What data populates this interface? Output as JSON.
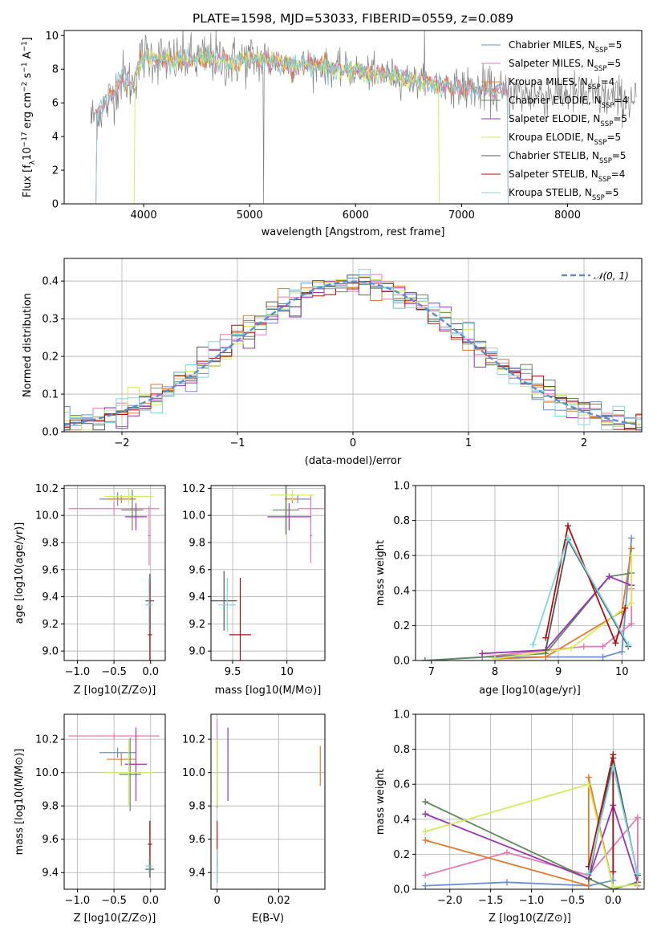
{
  "figure_title": "PLATE=1598, MJD=53033, FIBERID=0559, z=0.089",
  "colors": {
    "Chabrier MILES": "#6a8fd8",
    "Salpeter MILES": "#e27cb4",
    "Kroupa MILES": "#e07b2c",
    "Chabrier ELODIE": "#5f8a5b",
    "Salpeter ELODIE": "#9933b3",
    "Kroupa ELODIE": "#d4ea5c",
    "Chabrier STELIB": "#555555",
    "Salpeter STELIB": "#aa1111",
    "Kroupa STELIB": "#7dd6e0",
    "normal": "#5b8cd6"
  },
  "chart_data": [
    {
      "id": "spectrum",
      "type": "line",
      "title": "PLATE=1598, MJD=53033, FIBERID=0559, z=0.089",
      "xlabel": "wavelength [Angstrom, rest frame]",
      "ylabel": "Flux [f_λ 10^-17 erg cm^-2 s^-1 A^-1]",
      "xlim": [
        3250,
        8700
      ],
      "ylim": [
        0,
        10.3
      ],
      "xticks": [
        4000,
        5000,
        6000,
        7000,
        8000
      ],
      "yticks": [
        0,
        2,
        4,
        6,
        8,
        10
      ],
      "grid": false,
      "legend_position": "upper right",
      "legend": [
        {
          "base": "Chabrier MILES, N",
          "n": "5"
        },
        {
          "base": "Salpeter MILES, N",
          "n": "5"
        },
        {
          "base": "Kroupa MILES, N",
          "n": "4"
        },
        {
          "base": "Chabrier ELODIE, N",
          "n": "4"
        },
        {
          "base": "Salpeter ELODIE, N",
          "n": "5"
        },
        {
          "base": "Kroupa ELODIE, N",
          "n": "5"
        },
        {
          "base": "Chabrier STELIB, N",
          "n": "5"
        },
        {
          "base": "Salpeter STELIB, N",
          "n": "4"
        },
        {
          "base": "Kroupa STELIB, N",
          "n": "5"
        }
      ],
      "series_models": [
        {
          "name": "Kroupa MILES",
          "range": [
            3540,
            7450
          ]
        },
        {
          "name": "Salpeter MILES",
          "range": [
            3540,
            7450
          ]
        },
        {
          "name": "Kroupa ELODIE",
          "range": [
            3900,
            6800
          ]
        },
        {
          "name": "Kroupa STELIB",
          "range": [
            3540,
            7450
          ]
        }
      ],
      "data_curve": {
        "wavelength": [
          3500,
          3550,
          3600,
          3650,
          3700,
          3750,
          3800,
          3850,
          3900,
          3950,
          4000,
          4100,
          4200,
          4300,
          4400,
          4500,
          4600,
          4700,
          4800,
          4900,
          5000,
          5200,
          5400,
          5600,
          5800,
          6000,
          6200,
          6400,
          6600,
          6800,
          7000,
          7200,
          7400,
          7600,
          7800,
          8000,
          8200,
          8400,
          8600
        ],
        "flux": [
          5.0,
          5.3,
          5.6,
          5.9,
          6.4,
          7.0,
          7.6,
          7.3,
          7.0,
          8.2,
          8.8,
          8.7,
          8.6,
          8.5,
          8.6,
          8.5,
          8.7,
          8.6,
          8.4,
          8.5,
          8.6,
          8.5,
          8.3,
          8.3,
          8.0,
          7.9,
          7.7,
          7.6,
          7.2,
          7.1,
          6.9,
          6.8,
          6.6,
          6.5,
          6.5,
          6.6,
          6.4,
          6.3,
          6.2
        ]
      }
    },
    {
      "id": "residuals",
      "type": "histogram",
      "xlabel": "(data-model)/error",
      "ylabel": "Normed distribution",
      "xlim": [
        -2.5,
        2.5
      ],
      "ylim": [
        0,
        0.46
      ],
      "xticks": [
        -2,
        -1,
        0,
        1,
        2
      ],
      "yticks": [
        0.0,
        0.1,
        0.2,
        0.3,
        0.4
      ],
      "grid": true,
      "legend_position": "upper right",
      "legend": [
        "N(0,1)"
      ],
      "bin_width": 0.1
    },
    {
      "id": "age_vs_Z",
      "type": "scatter",
      "xlabel": "Z [log10(Z/Z⊙)]",
      "ylabel": "age [log10(age/yr)]",
      "xlim": [
        -1.18,
        0.2
      ],
      "ylim": [
        8.93,
        10.22
      ],
      "xticks": [
        -1.0,
        -0.5,
        0.0
      ],
      "xticklabels": [
        "−1.0",
        "−0.5",
        "0.0"
      ],
      "yticks": [
        9.0,
        9.2,
        9.4,
        9.6,
        9.8,
        10.0,
        10.2
      ],
      "grid": true,
      "points": [
        {
          "model": "Chabrier MILES",
          "x": -0.45,
          "xerr": 0.25,
          "y": 10.12,
          "yerr": 0.05
        },
        {
          "model": "Salpeter MILES",
          "x": -0.5,
          "xerr": 0.62,
          "y": 10.05,
          "yerr": 0.05
        },
        {
          "model": "Salpeter MILES",
          "x": -0.02,
          "xerr": 0.02,
          "y": 9.85,
          "yerr": 0.22
        },
        {
          "model": "Kroupa MILES",
          "x": -0.4,
          "xerr": 0.2,
          "y": 10.12,
          "yerr": 0.03
        },
        {
          "model": "Chabrier ELODIE",
          "x": -0.25,
          "xerr": 0.15,
          "y": 10.04,
          "yerr": 0.15
        },
        {
          "model": "Salpeter ELODIE",
          "x": -0.2,
          "xerr": 0.15,
          "y": 9.99,
          "yerr": 0.1
        },
        {
          "model": "Kroupa ELODIE",
          "x": -0.3,
          "xerr": 0.33,
          "y": 10.14,
          "yerr": 0.06
        },
        {
          "model": "Chabrier STELIB",
          "x": -0.01,
          "xerr": 0.06,
          "y": 9.37,
          "yerr": 0.2
        },
        {
          "model": "Salpeter STELIB",
          "x": -0.01,
          "xerr": 0.03,
          "y": 9.12,
          "yerr": 0.4
        },
        {
          "model": "Kroupa STELIB",
          "x": -0.02,
          "xerr": 0.05,
          "y": 9.34,
          "yerr": 0.2
        }
      ]
    },
    {
      "id": "age_vs_mass",
      "type": "scatter",
      "xlabel": "mass [log10(M/M⊙)]",
      "xlim": [
        9.3,
        10.35
      ],
      "ylim": [
        8.93,
        10.22
      ],
      "xticks": [
        9.5,
        10.0
      ],
      "yticks": [
        9.0,
        9.2,
        9.4,
        9.6,
        9.8,
        10.0,
        10.2
      ],
      "grid": true,
      "points": [
        {
          "model": "Chabrier MILES",
          "x": 10.1,
          "xerr": 0.12,
          "y": 10.12,
          "yerr": 0.03
        },
        {
          "model": "Salpeter MILES",
          "x": 10.22,
          "xerr": 0.12,
          "y": 10.05,
          "yerr": 0.1
        },
        {
          "model": "Salpeter MILES",
          "x": 10.22,
          "xerr": 0.01,
          "y": 9.85,
          "yerr": 0.2
        },
        {
          "model": "Kroupa MILES",
          "x": 10.05,
          "xerr": 0.06,
          "y": 10.12,
          "yerr": 0.03
        },
        {
          "model": "Chabrier ELODIE",
          "x": 9.99,
          "xerr": 0.12,
          "y": 10.04,
          "yerr": 0.18
        },
        {
          "model": "Salpeter ELODIE",
          "x": 10.02,
          "xerr": 0.2,
          "y": 9.99,
          "yerr": 0.1
        },
        {
          "model": "Kroupa ELODIE",
          "x": 10.05,
          "xerr": 0.2,
          "y": 10.15,
          "yerr": 0.04
        },
        {
          "model": "Chabrier STELIB",
          "x": 9.42,
          "xerr": 0.12,
          "y": 9.37,
          "yerr": 0.22
        },
        {
          "model": "Salpeter STELIB",
          "x": 9.57,
          "xerr": 0.1,
          "y": 9.12,
          "yerr": 0.42
        },
        {
          "model": "Kroupa STELIB",
          "x": 9.45,
          "xerr": 0.08,
          "y": 9.34,
          "yerr": 0.2
        }
      ]
    },
    {
      "id": "massweight_vs_age",
      "type": "line",
      "xlabel": "age [log10(age/yr)]",
      "ylabel": "mass weight",
      "xlim": [
        6.75,
        10.35
      ],
      "ylim": [
        0,
        1
      ],
      "xticks": [
        7,
        8,
        9,
        10
      ],
      "yticks": [
        0.0,
        0.2,
        0.4,
        0.6,
        0.8,
        1.0
      ],
      "grid": true,
      "series": [
        {
          "name": "Chabrier MILES",
          "x": [
            6.9,
            7.8,
            9.7,
            10.0,
            10.15
          ],
          "y": [
            0.0,
            0.02,
            0.02,
            0.05,
            0.7
          ]
        },
        {
          "name": "Salpeter MILES",
          "x": [
            7.8,
            9.4,
            9.7,
            10.15,
            10.15
          ],
          "y": [
            0.02,
            0.08,
            0.08,
            0.21,
            0.41
          ]
        },
        {
          "name": "Kroupa MILES",
          "x": [
            8.0,
            8.8,
            10.0,
            10.15
          ],
          "y": [
            0.01,
            0.02,
            0.28,
            0.64
          ]
        },
        {
          "name": "Chabrier ELODIE",
          "x": [
            6.9,
            8.8,
            9.8,
            10.15
          ],
          "y": [
            0.0,
            0.04,
            0.48,
            0.5
          ]
        },
        {
          "name": "Salpeter ELODIE",
          "x": [
            7.8,
            8.8,
            9.8,
            10.15
          ],
          "y": [
            0.04,
            0.06,
            0.48,
            0.43
          ]
        },
        {
          "name": "Kroupa ELODIE",
          "x": [
            8.0,
            9.2,
            10.15,
            10.15
          ],
          "y": [
            0.01,
            0.07,
            0.33,
            0.6
          ]
        },
        {
          "name": "Chabrier STELIB",
          "x": [
            8.8,
            9.15,
            10.1
          ],
          "y": [
            0.06,
            0.69,
            0.08
          ]
        },
        {
          "name": "Salpeter STELIB",
          "x": [
            8.8,
            9.15,
            9.9,
            10.05
          ],
          "y": [
            0.13,
            0.77,
            0.1,
            0.3
          ]
        },
        {
          "name": "Kroupa STELIB",
          "x": [
            8.6,
            9.15,
            10.1
          ],
          "y": [
            0.09,
            0.7,
            0.09
          ]
        }
      ]
    },
    {
      "id": "mass_vs_Z",
      "type": "scatter",
      "xlabel": "Z [log10(Z/Z⊙)]",
      "ylabel": "mass [log10(M/M⊙)]",
      "xlim": [
        -1.18,
        0.2
      ],
      "ylim": [
        9.3,
        10.35
      ],
      "xticks": [
        -1.0,
        -0.5,
        0.0
      ],
      "xticklabels": [
        "−1.0",
        "−0.5",
        "0.0"
      ],
      "yticks": [
        9.4,
        9.6,
        9.8,
        10.0,
        10.2
      ],
      "grid": true,
      "points": [
        {
          "model": "Chabrier MILES",
          "x": -0.45,
          "xerr": 0.25,
          "y": 10.12,
          "yerr": 0.03
        },
        {
          "model": "Salpeter MILES",
          "x": -0.5,
          "xerr": 0.62,
          "y": 10.22,
          "yerr": 0.02
        },
        {
          "model": "Kroupa MILES",
          "x": -0.4,
          "xerr": 0.2,
          "y": 10.08,
          "yerr": 0.04
        },
        {
          "model": "Chabrier ELODIE",
          "x": -0.28,
          "xerr": 0.15,
          "y": 9.99,
          "yerr": 0.22
        },
        {
          "model": "Salpeter ELODIE",
          "x": -0.2,
          "xerr": 0.15,
          "y": 10.05,
          "yerr": 0.22
        },
        {
          "model": "Kroupa ELODIE",
          "x": -0.3,
          "xerr": 0.33,
          "y": 10.0,
          "yerr": 0.2
        },
        {
          "model": "Chabrier STELIB",
          "x": -0.01,
          "xerr": 0.06,
          "y": 9.42,
          "yerr": 0.05
        },
        {
          "model": "Salpeter STELIB",
          "x": -0.01,
          "xerr": 0.03,
          "y": 9.57,
          "yerr": 0.14
        },
        {
          "model": "Kroupa STELIB",
          "x": -0.02,
          "xerr": 0.05,
          "y": 9.44,
          "yerr": 0.05
        }
      ]
    },
    {
      "id": "mass_vs_ebv",
      "type": "scatter",
      "xlabel": "E(B-V)",
      "xlim": [
        -0.002,
        0.035
      ],
      "ylim": [
        9.3,
        10.35
      ],
      "xticks": [
        0.0,
        0.02
      ],
      "yticks": [
        9.4,
        9.6,
        9.8,
        10.0,
        10.2
      ],
      "grid": true,
      "points": [
        {
          "model": "Chabrier MILES",
          "x": 0.0,
          "xerr": 0,
          "y": 10.12,
          "yerr": 0.03
        },
        {
          "model": "Salpeter MILES",
          "x": 0.0,
          "xerr": 0,
          "y": 10.22,
          "yerr": 0.1
        },
        {
          "model": "Kroupa MILES",
          "x": 0.0335,
          "xerr": 0,
          "y": 10.04,
          "yerr": 0.12
        },
        {
          "model": "Chabrier ELODIE",
          "x": 0.0,
          "xerr": 0,
          "y": 9.99,
          "yerr": 0.2
        },
        {
          "model": "Salpeter ELODIE",
          "x": 0.0035,
          "xerr": 0,
          "y": 10.05,
          "yerr": 0.22
        },
        {
          "model": "Kroupa ELODIE",
          "x": 0.0,
          "xerr": 0,
          "y": 10.0,
          "yerr": 0.2
        },
        {
          "model": "Chabrier STELIB",
          "x": 0.0,
          "xerr": 0,
          "y": 9.42,
          "yerr": 0.08
        },
        {
          "model": "Salpeter STELIB",
          "x": 0.0,
          "xerr": 0,
          "y": 9.57,
          "yerr": 0.14
        },
        {
          "model": "Kroupa STELIB",
          "x": 0.0,
          "xerr": 0,
          "y": 9.44,
          "yerr": 0.1
        }
      ]
    },
    {
      "id": "massweight_vs_Z",
      "type": "line",
      "xlabel": "Z [log10(Z/Z⊙)]",
      "ylabel": "mass weight",
      "xlim": [
        -2.42,
        0.38
      ],
      "ylim": [
        0,
        1
      ],
      "xticks": [
        -2.0,
        -1.5,
        -1.0,
        -0.5,
        0.0
      ],
      "xticklabels": [
        "−2.0",
        "−1.5",
        "−1.0",
        "−0.5",
        "0.0"
      ],
      "yticks": [
        0.0,
        0.2,
        0.4,
        0.6,
        0.8,
        1.0
      ],
      "grid": true,
      "series": [
        {
          "name": "Chabrier MILES",
          "x": [
            -2.3,
            -1.3,
            -0.3,
            0.0,
            0.0
          ],
          "y": [
            0.02,
            0.04,
            0.02,
            0.05,
            0.7
          ]
        },
        {
          "name": "Salpeter MILES",
          "x": [
            -2.3,
            -1.3,
            -0.3,
            0.3,
            0.3
          ],
          "y": [
            0.08,
            0.21,
            0.08,
            0.41,
            0.02
          ]
        },
        {
          "name": "Kroupa MILES",
          "x": [
            -2.3,
            -0.3,
            -0.3,
            0.0
          ],
          "y": [
            0.28,
            0.02,
            0.64,
            0.01
          ]
        },
        {
          "name": "Chabrier ELODIE",
          "x": [
            -2.3,
            -0.3,
            0.0,
            0.3
          ],
          "y": [
            0.5,
            0.06,
            0.0,
            0.04
          ]
        },
        {
          "name": "Salpeter ELODIE",
          "x": [
            -2.3,
            -0.3,
            0.0,
            0.3
          ],
          "y": [
            0.43,
            0.06,
            0.48,
            0.04
          ]
        },
        {
          "name": "Kroupa ELODIE",
          "x": [
            -2.3,
            -0.3,
            0.0,
            0.3
          ],
          "y": [
            0.33,
            0.6,
            0.01,
            0.03
          ]
        },
        {
          "name": "Chabrier STELIB",
          "x": [
            -0.3,
            0.0,
            0.3
          ],
          "y": [
            0.06,
            0.75,
            0.08
          ]
        },
        {
          "name": "Salpeter STELIB",
          "x": [
            -0.3,
            0.0,
            0.0
          ],
          "y": [
            0.13,
            0.77,
            0.1
          ]
        },
        {
          "name": "Kroupa STELIB",
          "x": [
            -0.3,
            0.0,
            0.3
          ],
          "y": [
            0.09,
            0.7,
            0.09
          ]
        }
      ]
    }
  ]
}
